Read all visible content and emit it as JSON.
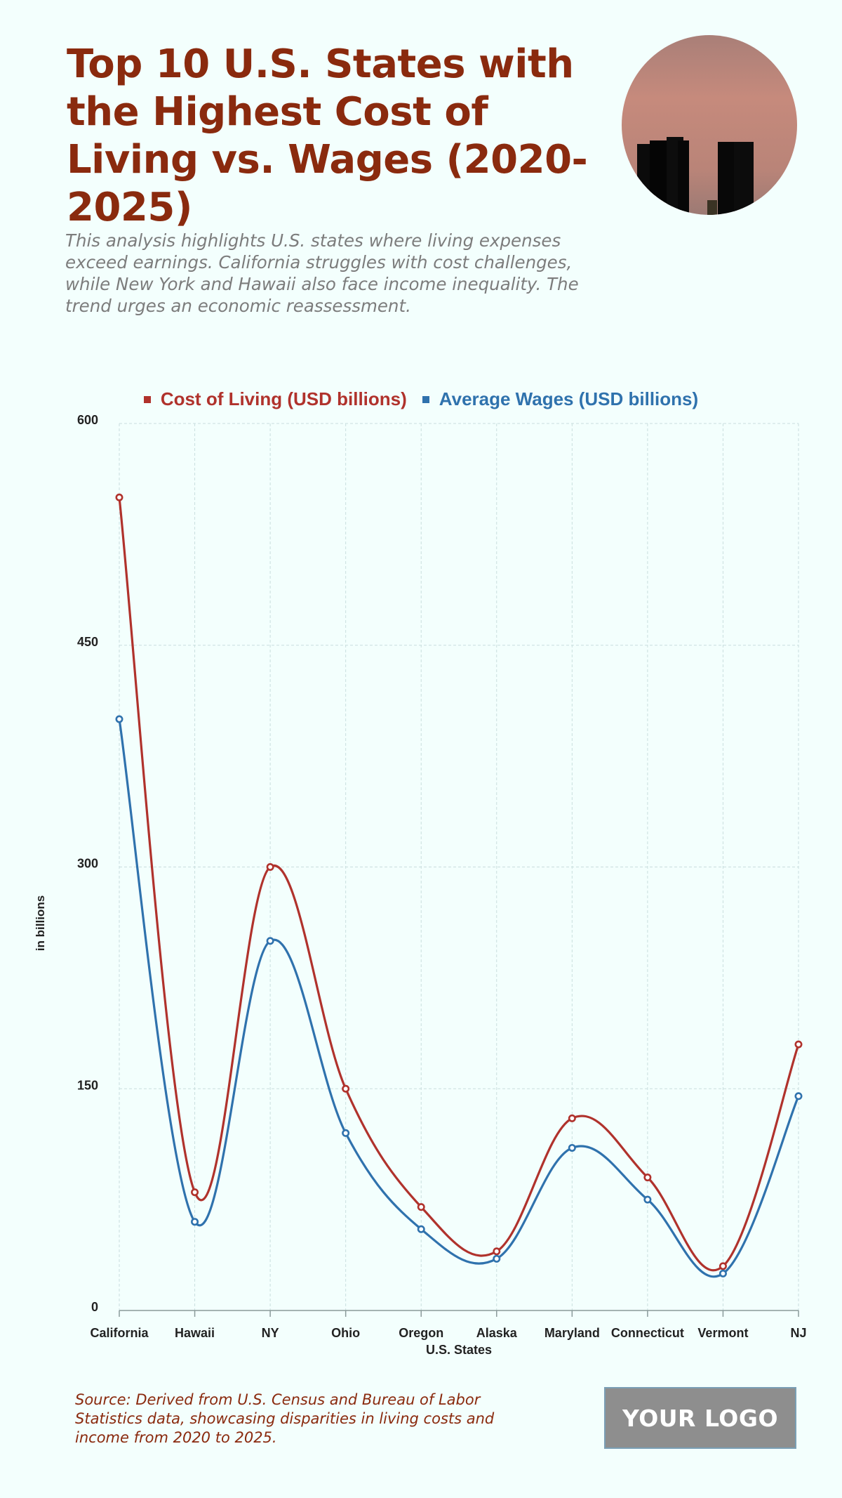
{
  "header": {
    "title": "Top 10 U.S. States with the Highest Cost of Living vs. Wages (2020-2025)",
    "subtitle": "This analysis highlights U.S. states where living expenses exceed earnings. California struggles with cost challenges, while New York and Hawaii also face income inequality. The trend urges an economic reassessment."
  },
  "colors": {
    "title": "#8a2a0e",
    "cost": "#b0322c",
    "wages": "#2f72ad",
    "grid": "#c9dede",
    "background": "#f3fffd"
  },
  "chart_data": {
    "type": "line",
    "categories": [
      "California",
      "Hawaii",
      "NY",
      "Ohio",
      "Oregon",
      "Alaska",
      "Maryland",
      "Connecticut",
      "Vermont",
      "NJ"
    ],
    "series": [
      {
        "name": "Cost of Living (USD billions)",
        "values": [
          550,
          80,
          300,
          150,
          70,
          40,
          130,
          90,
          30,
          180
        ]
      },
      {
        "name": "Average Wages (USD billions)",
        "values": [
          400,
          60,
          250,
          120,
          55,
          35,
          110,
          75,
          25,
          145
        ]
      }
    ],
    "xlabel": "U.S. States",
    "ylabel": "in billions",
    "ylim": [
      0,
      600
    ],
    "yticks": [
      "0",
      "150",
      "300",
      "450",
      "600"
    ],
    "grid": true,
    "legend_position": "top-center",
    "curve": "smooth"
  },
  "footer": {
    "source": "Source: Derived from U.S. Census and Bureau of Labor Statistics data, showcasing disparities in living costs and income from 2020 to 2025.",
    "logo_text": "YOUR LOGO"
  }
}
